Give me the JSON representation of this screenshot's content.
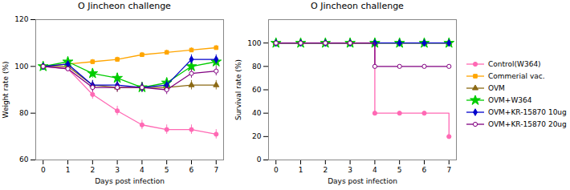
{
  "chart_data": [
    {
      "type": "line",
      "title": "O Jincheon challenge",
      "xlabel": "Days post infection",
      "ylabel": "Weight rate (%)",
      "x": [
        0,
        1,
        2,
        3,
        4,
        5,
        6,
        7
      ],
      "xlim": [
        -0.3,
        7.3
      ],
      "xticks": [
        0,
        1,
        2,
        3,
        4,
        5,
        6,
        7
      ],
      "ylim": [
        60,
        120
      ],
      "yticks": [
        60,
        80,
        100,
        120
      ],
      "grid": false,
      "series": [
        {
          "name": "Control(W364)",
          "color": "#FF69B4",
          "marker": "circle",
          "values": [
            100,
            99,
            88,
            81,
            75,
            73,
            73,
            71
          ],
          "errors": [
            0,
            1,
            2,
            2,
            2,
            2,
            2,
            2
          ]
        },
        {
          "name": "Commerial vac.",
          "color": "#FFA500",
          "marker": "square",
          "values": [
            100,
            101,
            102,
            103,
            105,
            106,
            107,
            108
          ],
          "errors": [
            0,
            1,
            1,
            1,
            1,
            1,
            1,
            1
          ]
        },
        {
          "name": "OVM",
          "color": "#8B6914",
          "marker": "triangle",
          "values": [
            100,
            100,
            92,
            91,
            91,
            91,
            92,
            92
          ],
          "errors": [
            0,
            1,
            2,
            2,
            2,
            2,
            2,
            2
          ]
        },
        {
          "name": "OVM+W364",
          "color": "#00CC00",
          "marker": "star",
          "values": [
            100,
            102,
            97,
            95,
            91,
            93,
            100,
            102
          ],
          "errors": [
            0,
            1,
            2,
            2,
            2,
            2,
            2,
            2
          ]
        },
        {
          "name": "OVM+KR-15870 10ug",
          "color": "#0000CC",
          "marker": "diamond",
          "values": [
            100,
            101,
            92,
            92,
            91,
            92,
            103,
            103
          ],
          "errors": [
            0,
            1,
            2,
            2,
            2,
            2,
            2,
            2
          ]
        },
        {
          "name": "OVM+KR-15870 20ug",
          "color": "#800080",
          "marker": "circle-open",
          "values": [
            100,
            99,
            91,
            91,
            91,
            90,
            97,
            98
          ],
          "errors": [
            0,
            1,
            2,
            2,
            2,
            2,
            2,
            2
          ]
        }
      ]
    },
    {
      "type": "step",
      "title": "O Jincheon challenge",
      "xlabel": "Days post infection",
      "ylabel": "Survival rate (%)",
      "x": [
        0,
        1,
        2,
        3,
        4,
        5,
        6,
        7
      ],
      "xlim": [
        -0.3,
        7.3
      ],
      "xticks": [
        0,
        1,
        2,
        3,
        4,
        5,
        6,
        7
      ],
      "ylim": [
        0,
        120
      ],
      "yticks": [
        0,
        20,
        40,
        60,
        80,
        100
      ],
      "grid": false,
      "legend": "right",
      "series": [
        {
          "name": "Control(W364)",
          "color": "#FF69B4",
          "marker": "circle",
          "values": [
            100,
            100,
            100,
            100,
            40,
            40,
            40,
            20
          ]
        },
        {
          "name": "Commerial vac.",
          "color": "#FFA500",
          "marker": "square",
          "values": [
            100,
            100,
            100,
            100,
            100,
            100,
            100,
            100
          ]
        },
        {
          "name": "OVM",
          "color": "#8B6914",
          "marker": "triangle",
          "values": [
            100,
            100,
            100,
            100,
            100,
            100,
            100,
            100
          ]
        },
        {
          "name": "OVM+W364",
          "color": "#00CC00",
          "marker": "star",
          "values": [
            100,
            100,
            100,
            100,
            100,
            100,
            100,
            100
          ]
        },
        {
          "name": "OVM+KR-15870 10ug",
          "color": "#0000CC",
          "marker": "diamond",
          "values": [
            100,
            100,
            100,
            100,
            100,
            100,
            100,
            100
          ]
        },
        {
          "name": "OVM+KR-15870 20ug",
          "color": "#800080",
          "marker": "circle-open",
          "values": [
            100,
            100,
            100,
            100,
            80,
            80,
            80,
            80
          ]
        }
      ]
    }
  ]
}
